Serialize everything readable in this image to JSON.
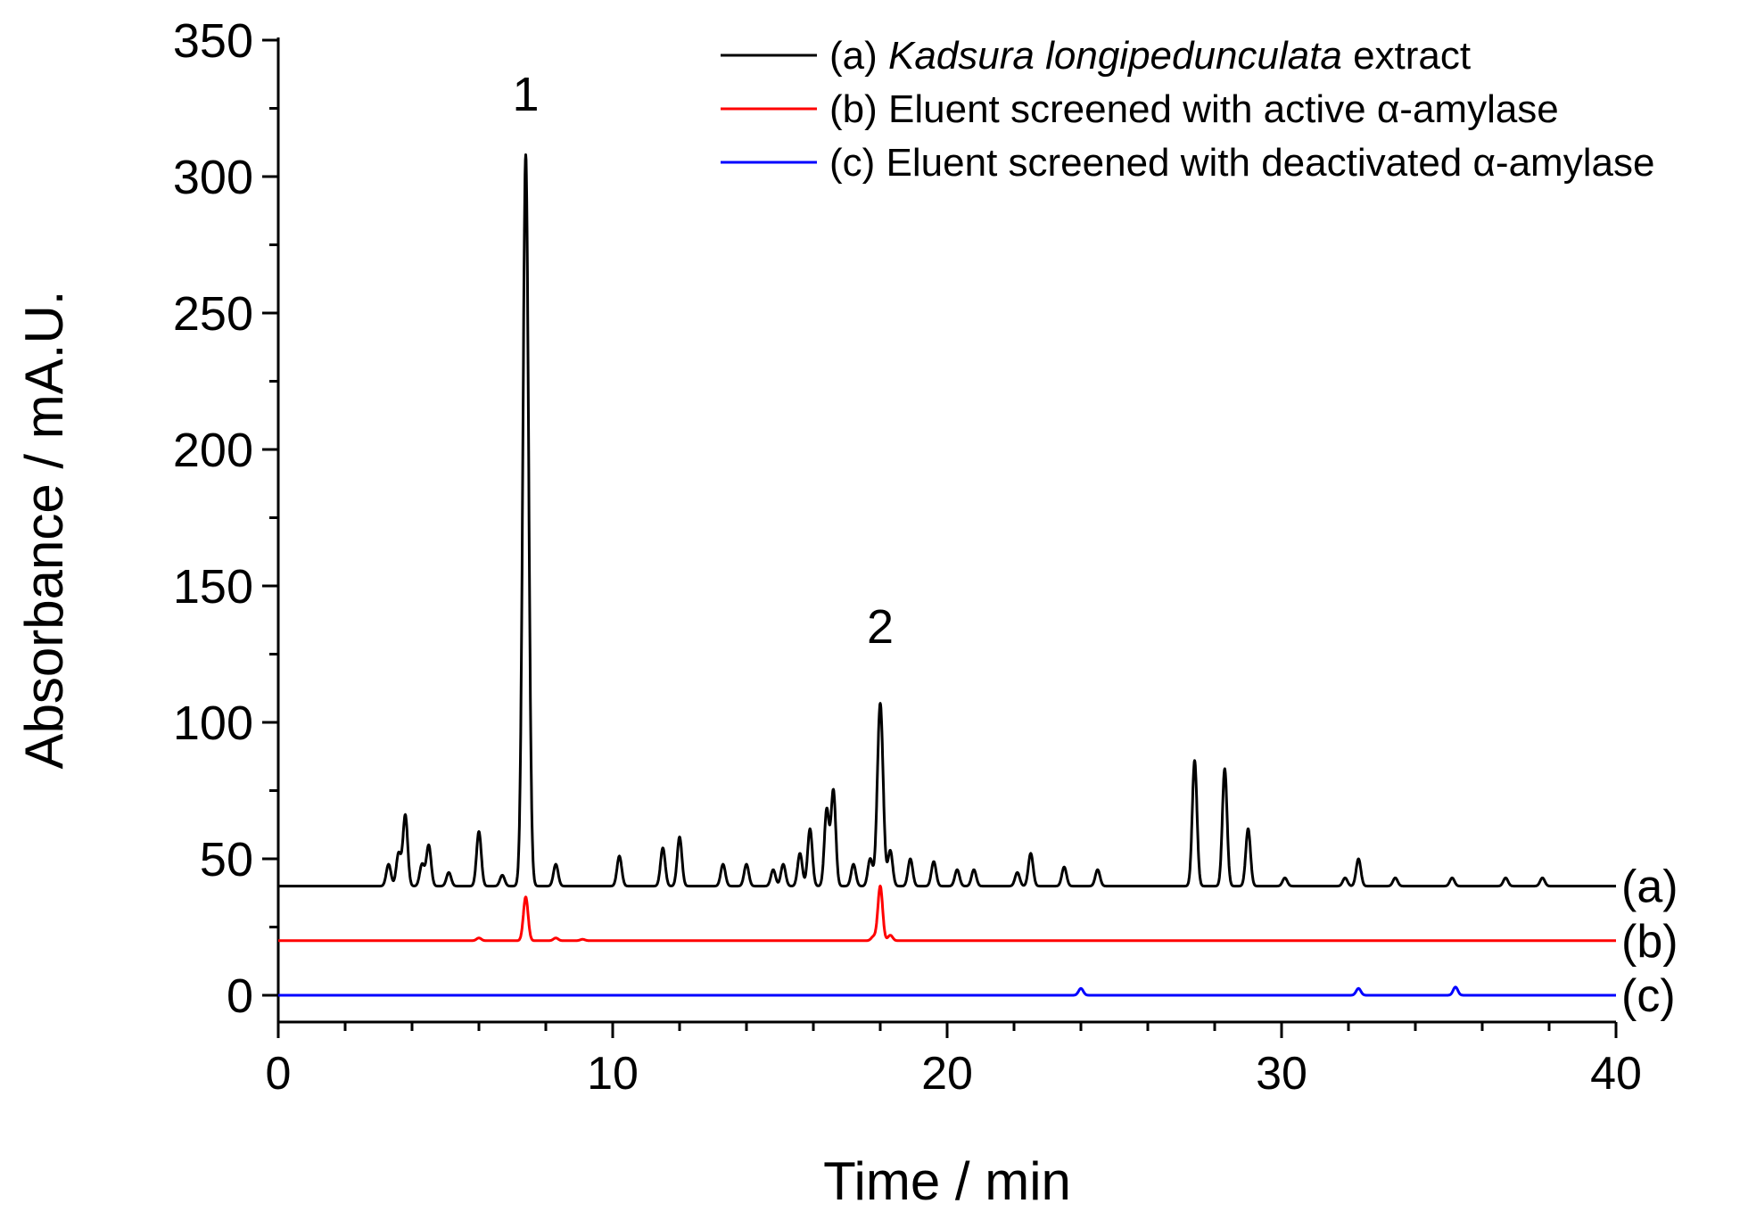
{
  "chart_data": {
    "type": "line",
    "xlabel": "Time / min",
    "ylabel": "Absorbance / mA.U.",
    "xlim": [
      0,
      40
    ],
    "ylim": [
      -10,
      350
    ],
    "x_ticks": [
      0,
      10,
      20,
      30,
      40
    ],
    "y_ticks": [
      0,
      50,
      100,
      150,
      200,
      250,
      300,
      350
    ],
    "grid": false,
    "legend_position": "top-right",
    "series": [
      {
        "name": "(a) Kadsura longipedunculata extract",
        "legend_prefix": "(a) ",
        "legend_italic": "Kadsura longipedunculata",
        "legend_suffix": " extract",
        "end_label": "(a)",
        "color": "#000000",
        "baseline": 40,
        "peaks": [
          [
            3.3,
            48
          ],
          [
            3.6,
            52
          ],
          [
            3.8,
            66
          ],
          [
            4.3,
            48
          ],
          [
            4.5,
            55
          ],
          [
            5.1,
            45
          ],
          [
            6.0,
            60
          ],
          [
            6.7,
            44
          ],
          [
            7.4,
            308
          ],
          [
            8.3,
            48
          ],
          [
            10.2,
            51
          ],
          [
            11.5,
            54
          ],
          [
            12.0,
            58
          ],
          [
            13.3,
            48
          ],
          [
            14.0,
            48
          ],
          [
            14.8,
            46
          ],
          [
            15.1,
            48
          ],
          [
            15.6,
            52
          ],
          [
            15.9,
            61
          ],
          [
            16.4,
            68
          ],
          [
            16.6,
            75
          ],
          [
            17.2,
            48
          ],
          [
            17.7,
            50
          ],
          [
            18.0,
            107
          ],
          [
            18.3,
            53
          ],
          [
            18.9,
            50
          ],
          [
            19.6,
            49
          ],
          [
            20.3,
            46
          ],
          [
            20.8,
            46
          ],
          [
            22.1,
            45
          ],
          [
            22.5,
            52
          ],
          [
            23.5,
            47
          ],
          [
            24.5,
            46
          ],
          [
            27.4,
            86
          ],
          [
            28.3,
            83
          ],
          [
            29.0,
            61
          ],
          [
            30.1,
            43
          ],
          [
            31.9,
            43
          ],
          [
            32.3,
            50
          ],
          [
            33.4,
            43
          ],
          [
            35.1,
            43
          ],
          [
            36.7,
            43
          ],
          [
            37.8,
            43
          ]
        ]
      },
      {
        "name": "(b) Eluent screened with active α-amylase",
        "legend_prefix": "(b) Eluent screened with active α-amylase",
        "legend_italic": "",
        "legend_suffix": "",
        "end_label": "(b)",
        "color": "#ff0000",
        "baseline": 20,
        "peaks": [
          [
            6.0,
            21
          ],
          [
            7.4,
            36
          ],
          [
            8.3,
            21
          ],
          [
            9.1,
            20.5
          ],
          [
            17.8,
            21.5
          ],
          [
            18.0,
            40
          ],
          [
            18.3,
            22
          ]
        ]
      },
      {
        "name": "(c) Eluent screened with deactivated α-amylase",
        "legend_prefix": "(c) Eluent screened with deactivated α-amylase",
        "legend_italic": "",
        "legend_suffix": "",
        "end_label": "(c)",
        "color": "#0000ff",
        "baseline": 0,
        "peaks": [
          [
            24.0,
            2.5
          ],
          [
            32.3,
            2.5
          ],
          [
            35.2,
            3
          ]
        ]
      }
    ],
    "annotations": [
      {
        "text": "1",
        "x": 7.4,
        "y": 330
      },
      {
        "text": "2",
        "x": 18.0,
        "y": 135
      }
    ]
  }
}
